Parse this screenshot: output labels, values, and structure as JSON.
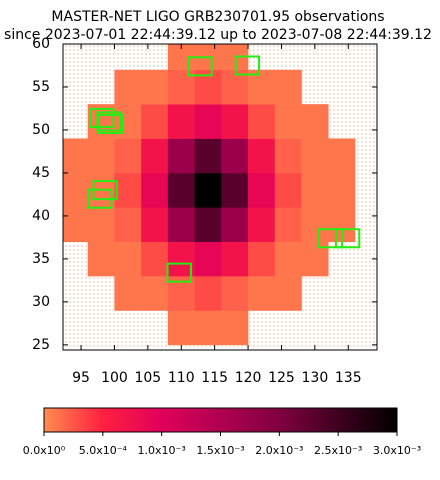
{
  "chart_data": {
    "type": "heatmap",
    "title": "MASTER-NET LIGO GRB230701.95 observations",
    "subtitle": "since 2023-07-01 22:44:39.12 up to 2023-07-08 22:44:39.12",
    "x": [
      94,
      98,
      102,
      106,
      110,
      114,
      118,
      122,
      126,
      130,
      134
    ],
    "y": [
      27,
      31,
      35,
      39,
      43,
      47,
      51,
      55,
      59
    ],
    "z": [
      [
        null,
        null,
        null,
        null,
        0.0001,
        0.0001,
        0.0001,
        null,
        null,
        null,
        null
      ],
      [
        null,
        null,
        0.0001,
        0.0001,
        0.0002,
        0.0003,
        0.0002,
        0.0001,
        0.0001,
        null,
        null
      ],
      [
        null,
        0.0001,
        0.0001,
        0.0003,
        0.0007,
        0.0009,
        0.0007,
        0.0003,
        0.0001,
        0.0001,
        null
      ],
      [
        0.0001,
        0.0001,
        0.0002,
        0.0007,
        0.0017,
        0.0023,
        0.0017,
        0.0007,
        0.0002,
        0.0001,
        0.0001
      ],
      [
        0.0001,
        0.0001,
        0.0003,
        0.0009,
        0.0023,
        0.003,
        0.0023,
        0.0009,
        0.0003,
        0.0001,
        0.0001
      ],
      [
        0.0001,
        0.0001,
        0.0002,
        0.0007,
        0.0017,
        0.0023,
        0.0017,
        0.0007,
        0.0002,
        0.0001,
        0.0001
      ],
      [
        null,
        0.0001,
        0.0001,
        0.0003,
        0.0007,
        0.0009,
        0.0007,
        0.0003,
        0.0001,
        0.0001,
        null
      ],
      [
        null,
        null,
        0.0001,
        0.0001,
        0.0002,
        0.0003,
        0.0002,
        0.0001,
        0.0001,
        null,
        null
      ],
      [
        null,
        null,
        null,
        null,
        0.0001,
        0.0001,
        0.0001,
        null,
        null,
        null,
        null
      ]
    ],
    "colormap": [
      "#ff8c50",
      "#ff2040",
      "#e0005a",
      "#b00050",
      "#800040",
      "#400020",
      "#000000"
    ],
    "zlim": [
      0,
      0.003
    ],
    "zticks": [
      {
        "value": 0,
        "label": "0.0x10⁰"
      },
      {
        "value": 0.0005,
        "label": "5.0x10⁻⁴"
      },
      {
        "value": 0.001,
        "label": "1.0x10⁻³"
      },
      {
        "value": 0.0015,
        "label": "1.5x10⁻³"
      },
      {
        "value": 0.002,
        "label": "2.0x10⁻³"
      },
      {
        "value": 0.0025,
        "label": "2.5x10⁻³"
      },
      {
        "value": 0.003,
        "label": "3.0x10⁻³"
      }
    ],
    "fields": {
      "color": "#22ee11",
      "size": [
        3.5,
        2.1
      ],
      "x": [
        112.8,
        119.9,
        98.1,
        99.2,
        99.4,
        98.6,
        97.8,
        132.3,
        134.9,
        109.7
      ],
      "y": [
        57.4,
        57.5,
        51.4,
        51.0,
        50.7,
        43.0,
        42.0,
        37.4,
        37.4,
        33.4
      ]
    },
    "xlim": [
      92.3,
      139.3
    ],
    "ylim": [
      24.4,
      60
    ],
    "xticks": [
      95,
      100,
      105,
      110,
      115,
      120,
      125,
      130,
      135
    ],
    "yticks": [
      25,
      30,
      35,
      40,
      45,
      50,
      55,
      60
    ]
  }
}
